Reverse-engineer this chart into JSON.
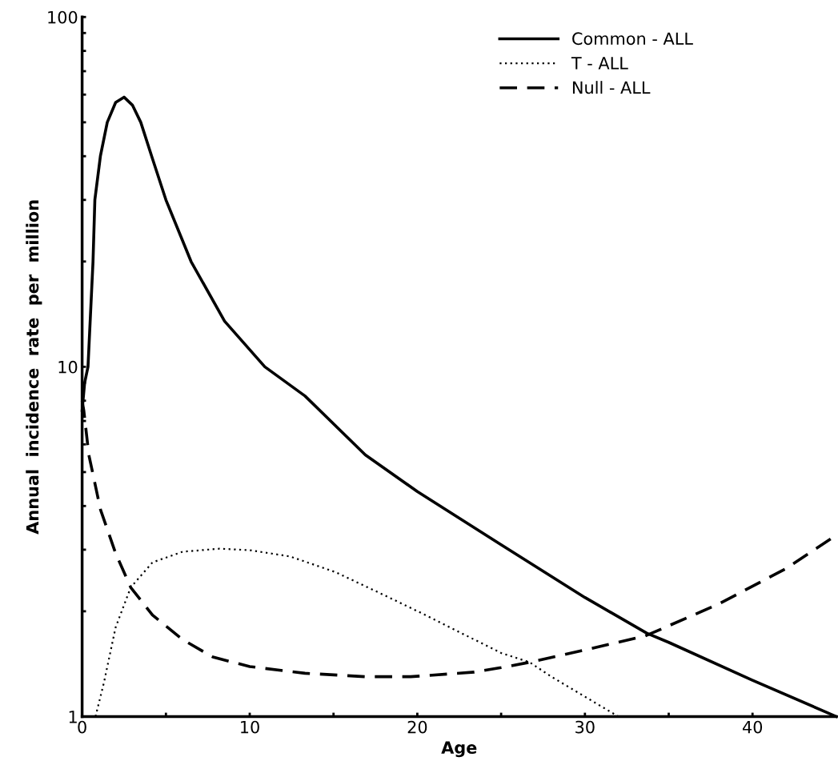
{
  "chart_data": {
    "type": "line",
    "xlabel": "Age",
    "ylabel": "Annual  incidence  rate  per  million",
    "log": "y",
    "xlim": [
      0,
      45
    ],
    "ylim": [
      1,
      100
    ],
    "xticks": [
      0,
      {
        "value": 5,
        "label": null
      },
      10,
      {
        "value": 15,
        "label": null
      },
      20,
      {
        "value": 25,
        "label": null
      },
      30,
      {
        "value": 35,
        "label": null
      },
      40
    ],
    "yticks": [
      1,
      {
        "value": 2,
        "label": null
      },
      {
        "value": 3,
        "label": null
      },
      {
        "value": 4,
        "label": null
      },
      {
        "value": 5,
        "label": null
      },
      {
        "value": 6,
        "label": null
      },
      {
        "value": 7,
        "label": null
      },
      {
        "value": 8,
        "label": null
      },
      {
        "value": 9,
        "label": null
      },
      10,
      {
        "value": 20,
        "label": null
      },
      {
        "value": 30,
        "label": null
      },
      {
        "value": 40,
        "label": null
      },
      {
        "value": 50,
        "label": null
      },
      {
        "value": 60,
        "label": null
      },
      {
        "value": 70,
        "label": null
      },
      {
        "value": 80,
        "label": null
      },
      {
        "value": 90,
        "label": null
      },
      100
    ],
    "grid": false,
    "legend": "top right",
    "marker": "none",
    "series": [
      {
        "name": "Common - ALL",
        "color": "#000000",
        "line_style": "solid",
        "x": [
          0,
          0.15,
          0.35,
          0.65,
          0.76,
          1.09,
          1.5,
          2,
          2.5,
          3,
          3.5,
          4.15,
          5,
          6.5,
          8.5,
          10.9,
          13.3,
          16.9,
          20,
          25,
          30,
          33.7,
          35,
          40,
          45
        ],
        "values": [
          7.5,
          9,
          10,
          20,
          30,
          40,
          50,
          57,
          59,
          56,
          50,
          40,
          30,
          20,
          13.5,
          10,
          8.25,
          5.6,
          4.4,
          3.1,
          2.19,
          1.73,
          1.63,
          1.27,
          1.0
        ]
      },
      {
        "name": "T - ALL",
        "color": "#000000",
        "line_style": "dotted",
        "x": [
          0.8,
          1.3,
          2,
          2.9,
          4.2,
          6,
          8.2,
          10,
          12.4,
          15.1,
          17.8,
          20.5,
          23.4,
          25,
          26.7,
          28,
          30,
          32
        ],
        "values": [
          1.0,
          1.25,
          1.8,
          2.34,
          2.76,
          2.96,
          3.02,
          2.99,
          2.87,
          2.59,
          2.25,
          1.95,
          1.66,
          1.52,
          1.43,
          1.3,
          1.14,
          1.0
        ]
      },
      {
        "name": "Null - ALL",
        "color": "#000000",
        "line_style": "dashed",
        "x": [
          0,
          0.1,
          0.4,
          1.1,
          2,
          2.9,
          4.2,
          6,
          7.8,
          10,
          13.3,
          16.9,
          19.6,
          23.4,
          25,
          26.7,
          30,
          33.6,
          38,
          42,
          45
        ],
        "values": [
          8,
          7.5,
          5.6,
          3.9,
          2.93,
          2.34,
          1.95,
          1.66,
          1.48,
          1.39,
          1.33,
          1.3,
          1.3,
          1.34,
          1.38,
          1.43,
          1.55,
          1.7,
          2.1,
          2.65,
          3.3
        ]
      }
    ]
  }
}
